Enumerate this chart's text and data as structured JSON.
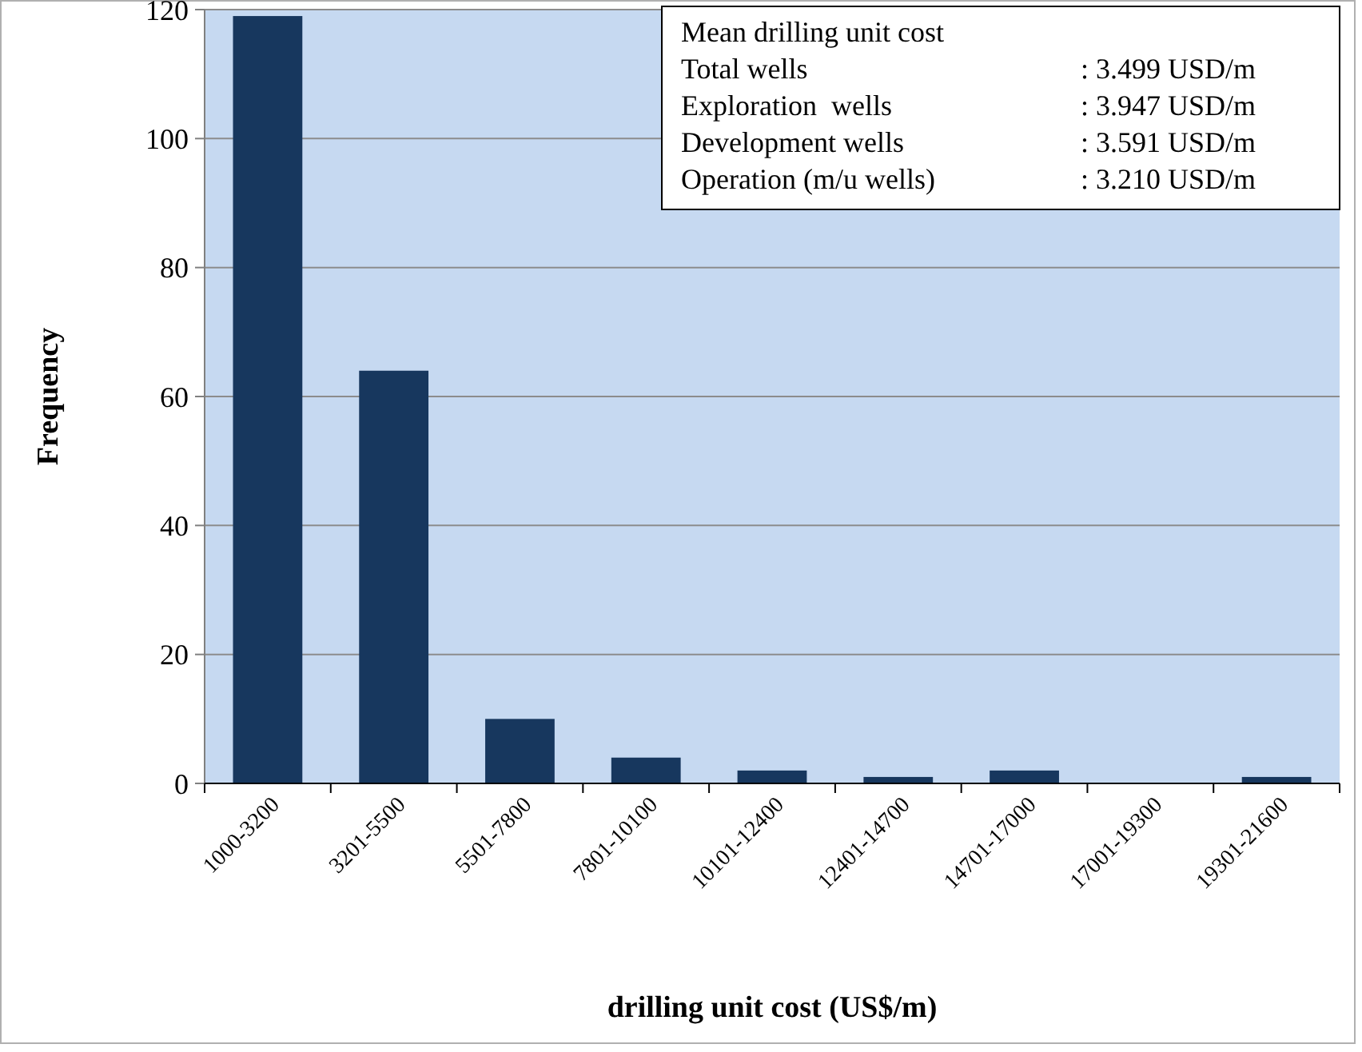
{
  "chart_data": {
    "type": "bar",
    "xlabel": "drilling unit cost (US$/m)",
    "ylabel": "Frequency",
    "categories": [
      "1000-3200",
      "3201-5500",
      "5501-7800",
      "7801-10100",
      "10101-12400",
      "12401-14700",
      "14701-17000",
      "17001-19300",
      "19301-21600"
    ],
    "values": [
      119,
      64,
      10,
      4,
      2,
      1,
      2,
      0,
      1
    ],
    "color": "#17375e",
    "ylim": [
      0,
      120
    ],
    "yticks": [
      0,
      20,
      40,
      60,
      80,
      100,
      120
    ],
    "grid": "y",
    "annotations": [
      "Mean drilling unit cost",
      "Total wells",
      ": 3.499 USD/m",
      "Exploration  wells",
      ": 3.947 USD/m",
      "Development wells",
      ": 3.591 USD/m",
      "Operation (m/u wells)",
      ": 3.210 USD/m"
    ]
  }
}
